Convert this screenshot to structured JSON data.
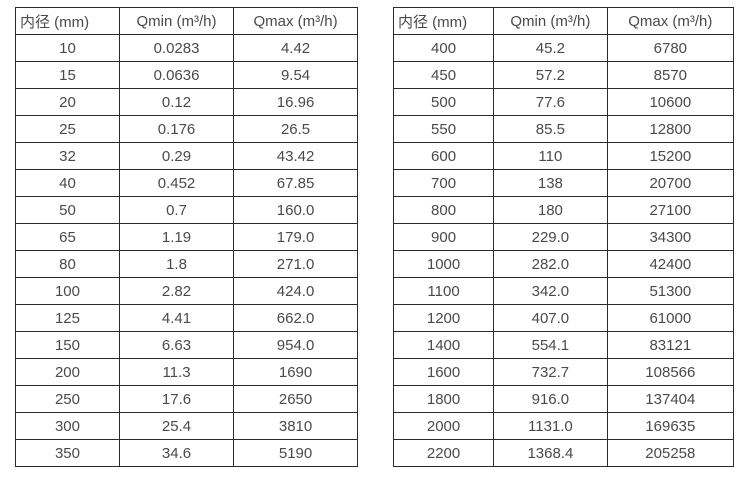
{
  "chart_data": [
    {
      "type": "table",
      "title": "",
      "headers": [
        "内径 (mm)",
        "Qmin (m³/h)",
        "Qmax (m³/h)"
      ],
      "rows": [
        [
          "10",
          "0.0283",
          "4.42"
        ],
        [
          "15",
          "0.0636",
          "9.54"
        ],
        [
          "20",
          "0.12",
          "16.96"
        ],
        [
          "25",
          "0.176",
          "26.5"
        ],
        [
          "32",
          "0.29",
          "43.42"
        ],
        [
          "40",
          "0.452",
          "67.85"
        ],
        [
          "50",
          "0.7",
          "160.0"
        ],
        [
          "65",
          "1.19",
          "179.0"
        ],
        [
          "80",
          "1.8",
          "271.0"
        ],
        [
          "100",
          "2.82",
          "424.0"
        ],
        [
          "125",
          "4.41",
          "662.0"
        ],
        [
          "150",
          "6.63",
          "954.0"
        ],
        [
          "200",
          "11.3",
          "1690"
        ],
        [
          "250",
          "17.6",
          "2650"
        ],
        [
          "300",
          "25.4",
          "3810"
        ],
        [
          "350",
          "34.6",
          "5190"
        ]
      ]
    },
    {
      "type": "table",
      "title": "",
      "headers": [
        "内径 (mm)",
        "Qmin (m³/h)",
        "Qmax (m³/h)"
      ],
      "rows": [
        [
          "400",
          "45.2",
          "6780"
        ],
        [
          "450",
          "57.2",
          "8570"
        ],
        [
          "500",
          "77.6",
          "10600"
        ],
        [
          "550",
          "85.5",
          "12800"
        ],
        [
          "600",
          "110",
          "15200"
        ],
        [
          "700",
          "138",
          "20700"
        ],
        [
          "800",
          "180",
          "27100"
        ],
        [
          "900",
          "229.0",
          "34300"
        ],
        [
          "1000",
          "282.0",
          "42400"
        ],
        [
          "1100",
          "342.0",
          "51300"
        ],
        [
          "1200",
          "407.0",
          "61000"
        ],
        [
          "1400",
          "554.1",
          "83121"
        ],
        [
          "1600",
          "732.7",
          "108566"
        ],
        [
          "1800",
          "916.0",
          "137404"
        ],
        [
          "2000",
          "1131.0",
          "169635"
        ],
        [
          "2200",
          "1368.4",
          "205258"
        ]
      ]
    }
  ]
}
